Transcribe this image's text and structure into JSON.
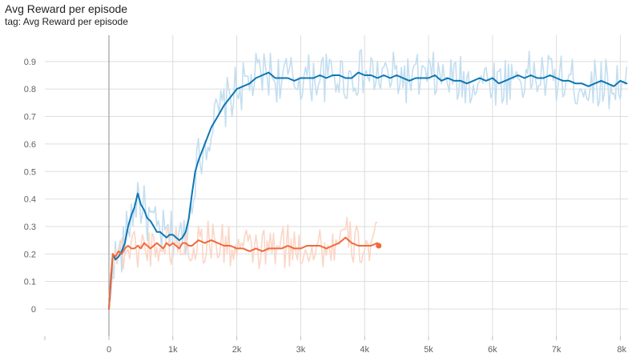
{
  "header": {
    "title": "Avg Reward per episode",
    "tag": "tag: Avg Reward per episode"
  },
  "chart_data": {
    "type": "line",
    "title": "Avg Reward per episode",
    "xlabel": "",
    "ylabel": "",
    "xlim": [
      -1000,
      8100
    ],
    "ylim": [
      -0.1,
      1.0
    ],
    "xticks": [
      0,
      1000,
      2000,
      3000,
      4000,
      5000,
      6000,
      7000,
      8000
    ],
    "xtick_labels": [
      "0",
      "1k",
      "2k",
      "3k",
      "4k",
      "5k",
      "6k",
      "7k",
      "8k"
    ],
    "yticks": [
      0,
      0.1,
      0.2,
      0.3,
      0.4,
      0.5,
      0.6,
      0.7,
      0.8,
      0.9
    ],
    "ytick_labels": [
      "0",
      "0.1",
      "0.2",
      "0.3",
      "0.4",
      "0.5",
      "0.6",
      "0.7",
      "0.8",
      "0.9"
    ],
    "grid": true,
    "colors": {
      "blue_smoothed": "#0d77b4",
      "blue_raw": "#c3def0",
      "orange_smoothed": "#ef6a3c",
      "orange_raw": "#fbd6c6"
    },
    "series": [
      {
        "color": "#0d77b4",
        "raw_color": "#c3def0",
        "x": [
          0,
          30,
          60,
          100,
          150,
          200,
          250,
          300,
          350,
          400,
          450,
          500,
          550,
          600,
          650,
          700,
          750,
          800,
          850,
          900,
          950,
          1000,
          1050,
          1100,
          1150,
          1200,
          1250,
          1300,
          1350,
          1400,
          1450,
          1500,
          1550,
          1600,
          1650,
          1700,
          1750,
          1800,
          1900,
          2000,
          2100,
          2200,
          2300,
          2400,
          2500,
          2600,
          2700,
          2800,
          2900,
          3000,
          3100,
          3200,
          3300,
          3400,
          3500,
          3600,
          3700,
          3800,
          3900,
          4000,
          4100,
          4200,
          4300,
          4400,
          4500,
          4600,
          4700,
          4800,
          4900,
          5000,
          5100,
          5200,
          5300,
          5400,
          5500,
          5600,
          5700,
          5800,
          5900,
          6000,
          6100,
          6200,
          6300,
          6400,
          6500,
          6600,
          6700,
          6800,
          6900,
          7000,
          7100,
          7200,
          7300,
          7400,
          7500,
          7600,
          7700,
          7800,
          7900,
          8000,
          8100
        ],
        "y": [
          0.0,
          0.1,
          0.2,
          0.18,
          0.19,
          0.21,
          0.24,
          0.3,
          0.34,
          0.37,
          0.42,
          0.38,
          0.36,
          0.33,
          0.32,
          0.3,
          0.28,
          0.28,
          0.27,
          0.26,
          0.27,
          0.27,
          0.26,
          0.25,
          0.26,
          0.28,
          0.33,
          0.42,
          0.5,
          0.54,
          0.57,
          0.6,
          0.63,
          0.66,
          0.68,
          0.7,
          0.72,
          0.74,
          0.77,
          0.8,
          0.81,
          0.82,
          0.84,
          0.85,
          0.86,
          0.84,
          0.84,
          0.84,
          0.83,
          0.84,
          0.84,
          0.84,
          0.85,
          0.84,
          0.85,
          0.85,
          0.84,
          0.84,
          0.86,
          0.85,
          0.85,
          0.84,
          0.85,
          0.84,
          0.85,
          0.84,
          0.83,
          0.84,
          0.84,
          0.84,
          0.85,
          0.83,
          0.84,
          0.83,
          0.83,
          0.82,
          0.83,
          0.84,
          0.83,
          0.84,
          0.82,
          0.83,
          0.84,
          0.85,
          0.84,
          0.85,
          0.84,
          0.84,
          0.85,
          0.84,
          0.83,
          0.83,
          0.82,
          0.82,
          0.81,
          0.82,
          0.83,
          0.82,
          0.81,
          0.83,
          0.82
        ]
      },
      {
        "color": "#ef6a3c",
        "raw_color": "#fbd6c6",
        "x": [
          0,
          30,
          60,
          100,
          150,
          200,
          250,
          300,
          350,
          400,
          450,
          500,
          550,
          600,
          650,
          700,
          750,
          800,
          850,
          900,
          950,
          1000,
          1050,
          1100,
          1150,
          1200,
          1250,
          1300,
          1400,
          1500,
          1600,
          1700,
          1800,
          1900,
          2000,
          2100,
          2200,
          2300,
          2400,
          2500,
          2600,
          2700,
          2800,
          2900,
          3000,
          3100,
          3200,
          3300,
          3400,
          3500,
          3600,
          3700,
          3800,
          3900,
          4000,
          4100,
          4200,
          4220
        ],
        "y": [
          0.0,
          0.12,
          0.2,
          0.19,
          0.21,
          0.2,
          0.22,
          0.23,
          0.22,
          0.22,
          0.23,
          0.22,
          0.24,
          0.23,
          0.22,
          0.23,
          0.24,
          0.23,
          0.22,
          0.24,
          0.23,
          0.24,
          0.23,
          0.22,
          0.24,
          0.24,
          0.23,
          0.23,
          0.25,
          0.24,
          0.25,
          0.24,
          0.23,
          0.23,
          0.22,
          0.22,
          0.21,
          0.22,
          0.21,
          0.22,
          0.22,
          0.22,
          0.23,
          0.22,
          0.22,
          0.23,
          0.23,
          0.23,
          0.22,
          0.23,
          0.24,
          0.26,
          0.24,
          0.23,
          0.23,
          0.23,
          0.24,
          0.23
        ]
      }
    ]
  }
}
